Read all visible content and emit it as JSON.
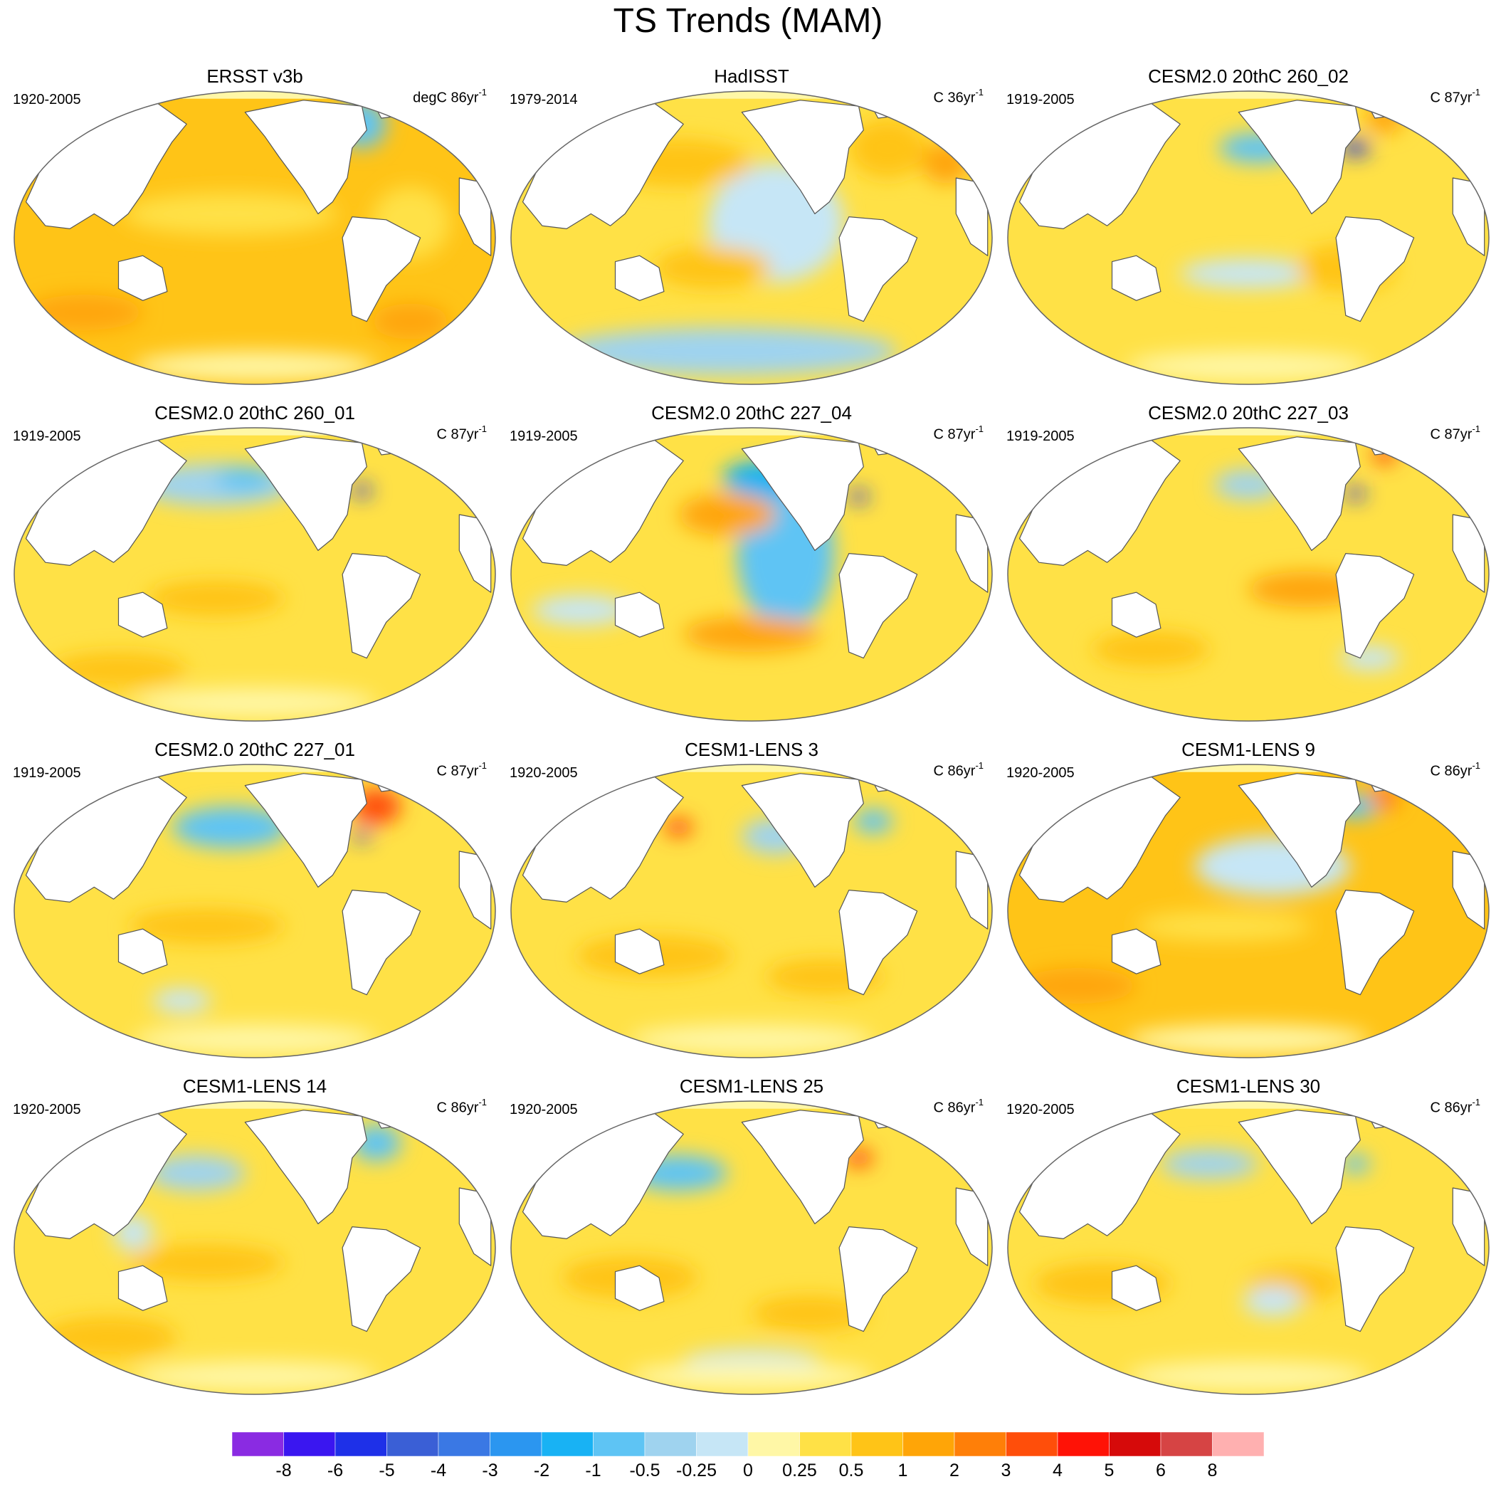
{
  "title": "TS Trends (MAM)",
  "colors": {
    "land": "#ffffff",
    "outline": "#666666",
    "coast": "#555555"
  },
  "colorbar": {
    "colors": [
      "#8a2be2",
      "#3a16f0",
      "#1e30e8",
      "#3a5fd6",
      "#3a78e4",
      "#2b96f0",
      "#18b2f4",
      "#5ec4f4",
      "#9fd3ef",
      "#c6e6f6",
      "#fff7a6",
      "#ffe146",
      "#ffc417",
      "#ffa507",
      "#ff7f08",
      "#ff4e0a",
      "#ff1206",
      "#d60a0a",
      "#d64444",
      "#ffb0b0"
    ],
    "labels": [
      "-8",
      "-6",
      "-5",
      "-4",
      "-3",
      "-2",
      "-1",
      "-0.5",
      "-0.25",
      "0",
      "0.25",
      "0.5",
      "1",
      "2",
      "3",
      "4",
      "5",
      "6",
      "8"
    ]
  },
  "panels": [
    {
      "title": "ERSST v3b",
      "years": "1920-2005",
      "units_prefix": "degC 86yr",
      "units_exp": "-1",
      "base": "#ffc417",
      "patches": [
        [
          "#ffe146",
          0.45,
          0.42,
          0.22,
          0.07
        ],
        [
          "#ffe146",
          0.82,
          0.45,
          0.08,
          0.12
        ],
        [
          "#5ec4f4",
          0.72,
          0.12,
          0.05,
          0.08
        ],
        [
          "#ffa507",
          0.15,
          0.75,
          0.12,
          0.06
        ],
        [
          "#ffa507",
          0.82,
          0.78,
          0.08,
          0.06
        ],
        [
          "#fff7a6",
          0.5,
          0.93,
          0.25,
          0.05
        ]
      ]
    },
    {
      "title": "HadISST",
      "years": "1979-2014",
      "units_prefix": "C 36yr",
      "units_exp": "-1",
      "base": "#ffe146",
      "patches": [
        [
          "#c6e6f6",
          0.55,
          0.45,
          0.14,
          0.2
        ],
        [
          "#9fd3ef",
          0.45,
          0.88,
          0.35,
          0.08
        ],
        [
          "#ffc417",
          0.35,
          0.25,
          0.15,
          0.08
        ],
        [
          "#ffc417",
          0.42,
          0.6,
          0.12,
          0.07
        ],
        [
          "#ffc417",
          0.78,
          0.2,
          0.08,
          0.1
        ],
        [
          "#ffa507",
          0.9,
          0.25,
          0.05,
          0.07
        ]
      ]
    },
    {
      "title": "CESM2.0 20thC 260_02",
      "years": "1919-2005",
      "units_prefix": "C 87yr",
      "units_exp": "-1",
      "base": "#ffe146",
      "patches": [
        [
          "#5ec4f4",
          0.52,
          0.2,
          0.08,
          0.05
        ],
        [
          "#1e30e8",
          0.72,
          0.2,
          0.03,
          0.025
        ],
        [
          "#ffa507",
          0.78,
          0.1,
          0.04,
          0.05
        ],
        [
          "#c6e6f6",
          0.5,
          0.62,
          0.14,
          0.05
        ],
        [
          "#ffc417",
          0.7,
          0.6,
          0.1,
          0.08
        ],
        [
          "#fff7a6",
          0.5,
          0.93,
          0.25,
          0.05
        ]
      ]
    },
    {
      "title": "CESM2.0 20thC 260_01",
      "years": "1919-2005",
      "units_prefix": "C 87yr",
      "units_exp": "-1",
      "base": "#ffe146",
      "patches": [
        [
          "#9fd3ef",
          0.42,
          0.2,
          0.16,
          0.07
        ],
        [
          "#5ec4f4",
          0.48,
          0.18,
          0.06,
          0.04
        ],
        [
          "#1e30e8",
          0.72,
          0.22,
          0.02,
          0.02
        ],
        [
          "#ffc417",
          0.42,
          0.58,
          0.14,
          0.06
        ],
        [
          "#ffc417",
          0.22,
          0.82,
          0.14,
          0.06
        ],
        [
          "#fff7a6",
          0.5,
          0.93,
          0.25,
          0.05
        ]
      ]
    },
    {
      "title": "CESM2.0 20thC 227_04",
      "years": "1919-2005",
      "units_prefix": "C 87yr",
      "units_exp": "-1",
      "base": "#ffe146",
      "patches": [
        [
          "#5ec4f4",
          0.57,
          0.43,
          0.1,
          0.25
        ],
        [
          "#18b2f4",
          0.52,
          0.18,
          0.08,
          0.06
        ],
        [
          "#ffa507",
          0.45,
          0.3,
          0.1,
          0.07
        ],
        [
          "#ffa507",
          0.5,
          0.7,
          0.14,
          0.06
        ],
        [
          "#c6e6f6",
          0.15,
          0.62,
          0.1,
          0.05
        ],
        [
          "#1e30e8",
          0.72,
          0.24,
          0.02,
          0.02
        ]
      ]
    },
    {
      "title": "CESM2.0 20thC 227_03",
      "years": "1919-2005",
      "units_prefix": "C 87yr",
      "units_exp": "-1",
      "base": "#ffe146",
      "patches": [
        [
          "#9fd3ef",
          0.5,
          0.2,
          0.07,
          0.05
        ],
        [
          "#1e30e8",
          0.72,
          0.23,
          0.02,
          0.02
        ],
        [
          "#ff4e0a",
          0.78,
          0.1,
          0.025,
          0.03
        ],
        [
          "#ffa507",
          0.62,
          0.55,
          0.12,
          0.06
        ],
        [
          "#c6e6f6",
          0.75,
          0.78,
          0.06,
          0.04
        ],
        [
          "#ffc417",
          0.3,
          0.75,
          0.12,
          0.06
        ]
      ]
    },
    {
      "title": "CESM2.0 20thC 227_01",
      "years": "1919-2005",
      "units_prefix": "C 87yr",
      "units_exp": "-1",
      "base": "#ffe146",
      "patches": [
        [
          "#5ec4f4",
          0.45,
          0.22,
          0.12,
          0.07
        ],
        [
          "#ff4e0a",
          0.75,
          0.15,
          0.05,
          0.06
        ],
        [
          "#1e30e8",
          0.72,
          0.25,
          0.02,
          0.015
        ],
        [
          "#ffc417",
          0.4,
          0.55,
          0.16,
          0.06
        ],
        [
          "#c6e6f6",
          0.35,
          0.8,
          0.06,
          0.04
        ],
        [
          "#fff7a6",
          0.5,
          0.93,
          0.25,
          0.05
        ]
      ]
    },
    {
      "title": "CESM1-LENS 3",
      "years": "1920-2005",
      "units_prefix": "C 86yr",
      "units_exp": "-1",
      "base": "#ffe146",
      "patches": [
        [
          "#9fd3ef",
          0.55,
          0.25,
          0.07,
          0.06
        ],
        [
          "#ff4e0a",
          0.35,
          0.22,
          0.03,
          0.03
        ],
        [
          "#ffc417",
          0.3,
          0.65,
          0.16,
          0.07
        ],
        [
          "#ffc417",
          0.65,
          0.72,
          0.12,
          0.06
        ],
        [
          "#5ec4f4",
          0.75,
          0.2,
          0.04,
          0.04
        ],
        [
          "#fff7a6",
          0.5,
          0.93,
          0.25,
          0.05
        ]
      ]
    },
    {
      "title": "CESM1-LENS 9",
      "years": "1920-2005",
      "units_prefix": "C 86yr",
      "units_exp": "-1",
      "base": "#ffc417",
      "patches": [
        [
          "#c6e6f6",
          0.55,
          0.35,
          0.16,
          0.1
        ],
        [
          "#5ec4f4",
          0.72,
          0.15,
          0.05,
          0.04
        ],
        [
          "#ffe146",
          0.45,
          0.55,
          0.18,
          0.05
        ],
        [
          "#ffa507",
          0.15,
          0.75,
          0.12,
          0.06
        ],
        [
          "#ff7f08",
          0.78,
          0.12,
          0.03,
          0.04
        ],
        [
          "#fff7a6",
          0.5,
          0.93,
          0.25,
          0.05
        ]
      ]
    },
    {
      "title": "CESM1-LENS 14",
      "years": "1920-2005",
      "units_prefix": "C 86yr",
      "units_exp": "-1",
      "base": "#ffe146",
      "patches": [
        [
          "#9fd3ef",
          0.38,
          0.25,
          0.1,
          0.06
        ],
        [
          "#5ec4f4",
          0.75,
          0.15,
          0.05,
          0.06
        ],
        [
          "#ffc417",
          0.4,
          0.55,
          0.16,
          0.06
        ],
        [
          "#ffc417",
          0.2,
          0.8,
          0.14,
          0.07
        ],
        [
          "#fff7a6",
          0.5,
          0.93,
          0.25,
          0.05
        ],
        [
          "#c6e6f6",
          0.25,
          0.45,
          0.04,
          0.06
        ]
      ]
    },
    {
      "title": "CESM1-LENS 25",
      "years": "1920-2005",
      "units_prefix": "C 86yr",
      "units_exp": "-1",
      "base": "#ffe146",
      "patches": [
        [
          "#5ec4f4",
          0.35,
          0.25,
          0.1,
          0.06
        ],
        [
          "#ff4e0a",
          0.72,
          0.2,
          0.03,
          0.03
        ],
        [
          "#ffc417",
          0.25,
          0.6,
          0.14,
          0.07
        ],
        [
          "#ffc417",
          0.62,
          0.72,
          0.12,
          0.06
        ],
        [
          "#c6e6f6",
          0.5,
          0.88,
          0.14,
          0.04
        ],
        [
          "#fff7a6",
          0.5,
          0.93,
          0.25,
          0.05
        ]
      ]
    },
    {
      "title": "CESM1-LENS 30",
      "years": "1920-2005",
      "units_prefix": "C 86yr",
      "units_exp": "-1",
      "base": "#ffe146",
      "patches": [
        [
          "#9fd3ef",
          0.42,
          0.22,
          0.1,
          0.05
        ],
        [
          "#5ec4f4",
          0.72,
          0.22,
          0.03,
          0.03
        ],
        [
          "#ffc417",
          0.2,
          0.62,
          0.14,
          0.07
        ],
        [
          "#ffc417",
          0.6,
          0.62,
          0.1,
          0.06
        ],
        [
          "#c6e6f6",
          0.55,
          0.68,
          0.06,
          0.05
        ],
        [
          "#fff7a6",
          0.5,
          0.93,
          0.25,
          0.05
        ]
      ]
    }
  ]
}
